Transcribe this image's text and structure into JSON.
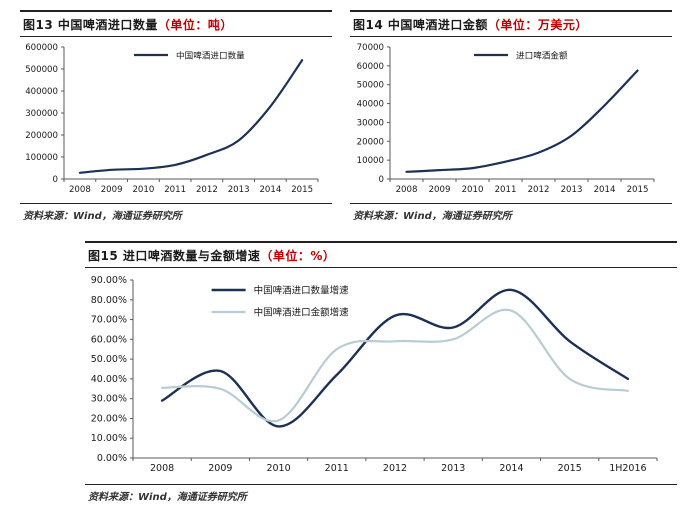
{
  "colors": {
    "dark_line": "#1f3055",
    "light_line": "#b8ccd2",
    "accent_red": "#c00000",
    "border": "#222222",
    "axis": "#595959",
    "text": "#1a1a1a"
  },
  "chart_data": [
    {
      "id": "fig13",
      "type": "line",
      "title_main": "图13 中国啤酒进口数量",
      "title_unit": "（单位：吨）",
      "source": "资料来源：Wind，海通证券研究所",
      "categories": [
        "2008",
        "2009",
        "2010",
        "2011",
        "2012",
        "2013",
        "2014",
        "2015"
      ],
      "series": [
        {
          "name": "中国啤酒进口数量",
          "color": "#1f3055",
          "width": 2.2,
          "values": [
            28000,
            42000,
            47000,
            64000,
            110000,
            175000,
            330000,
            540000
          ]
        }
      ],
      "ylabel": "",
      "xlabel": "",
      "ylim": [
        0,
        600000
      ],
      "ytick_step": 100000,
      "yformat": "int",
      "grid": false,
      "legend_position": "top-center"
    },
    {
      "id": "fig14",
      "type": "line",
      "title_main": "图14 中国啤酒进口金额",
      "title_unit": "（单位：万美元）",
      "source": "资料来源：Wind，海通证券研究所",
      "categories": [
        "2008",
        "2009",
        "2010",
        "2011",
        "2012",
        "2013",
        "2014",
        "2015"
      ],
      "series": [
        {
          "name": "进口啤酒金额",
          "color": "#1f3055",
          "width": 2.2,
          "values": [
            3800,
            4700,
            5800,
            9200,
            14000,
            23000,
            39000,
            57500
          ]
        }
      ],
      "ylabel": "",
      "xlabel": "",
      "ylim": [
        0,
        70000
      ],
      "ytick_step": 10000,
      "yformat": "int",
      "grid": false,
      "legend_position": "top-center"
    },
    {
      "id": "fig15",
      "type": "line",
      "title_main": "图15 进口啤酒数量与金额增速",
      "title_unit": "（单位：%）",
      "source": "资料来源：Wind，海通证券研究所",
      "categories": [
        "2008",
        "2009",
        "2010",
        "2011",
        "2012",
        "2013",
        "2014",
        "2015",
        "1H2016"
      ],
      "series": [
        {
          "name": "中国啤酒进口数量增速",
          "color": "#1f3055",
          "width": 2.4,
          "values": [
            29,
            44,
            16,
            42,
            72,
            66,
            85,
            59,
            40
          ]
        },
        {
          "name": "中国啤酒进口金额增速",
          "color": "#b8ccd2",
          "width": 2.2,
          "values": [
            35.5,
            35,
            19,
            55,
            59,
            60,
            74.5,
            40,
            34
          ]
        }
      ],
      "ylabel": "",
      "xlabel": "",
      "ylim": [
        0,
        90
      ],
      "ytick_step": 10,
      "yformat": "percent2",
      "grid": false,
      "legend_position": "top-inset"
    }
  ]
}
